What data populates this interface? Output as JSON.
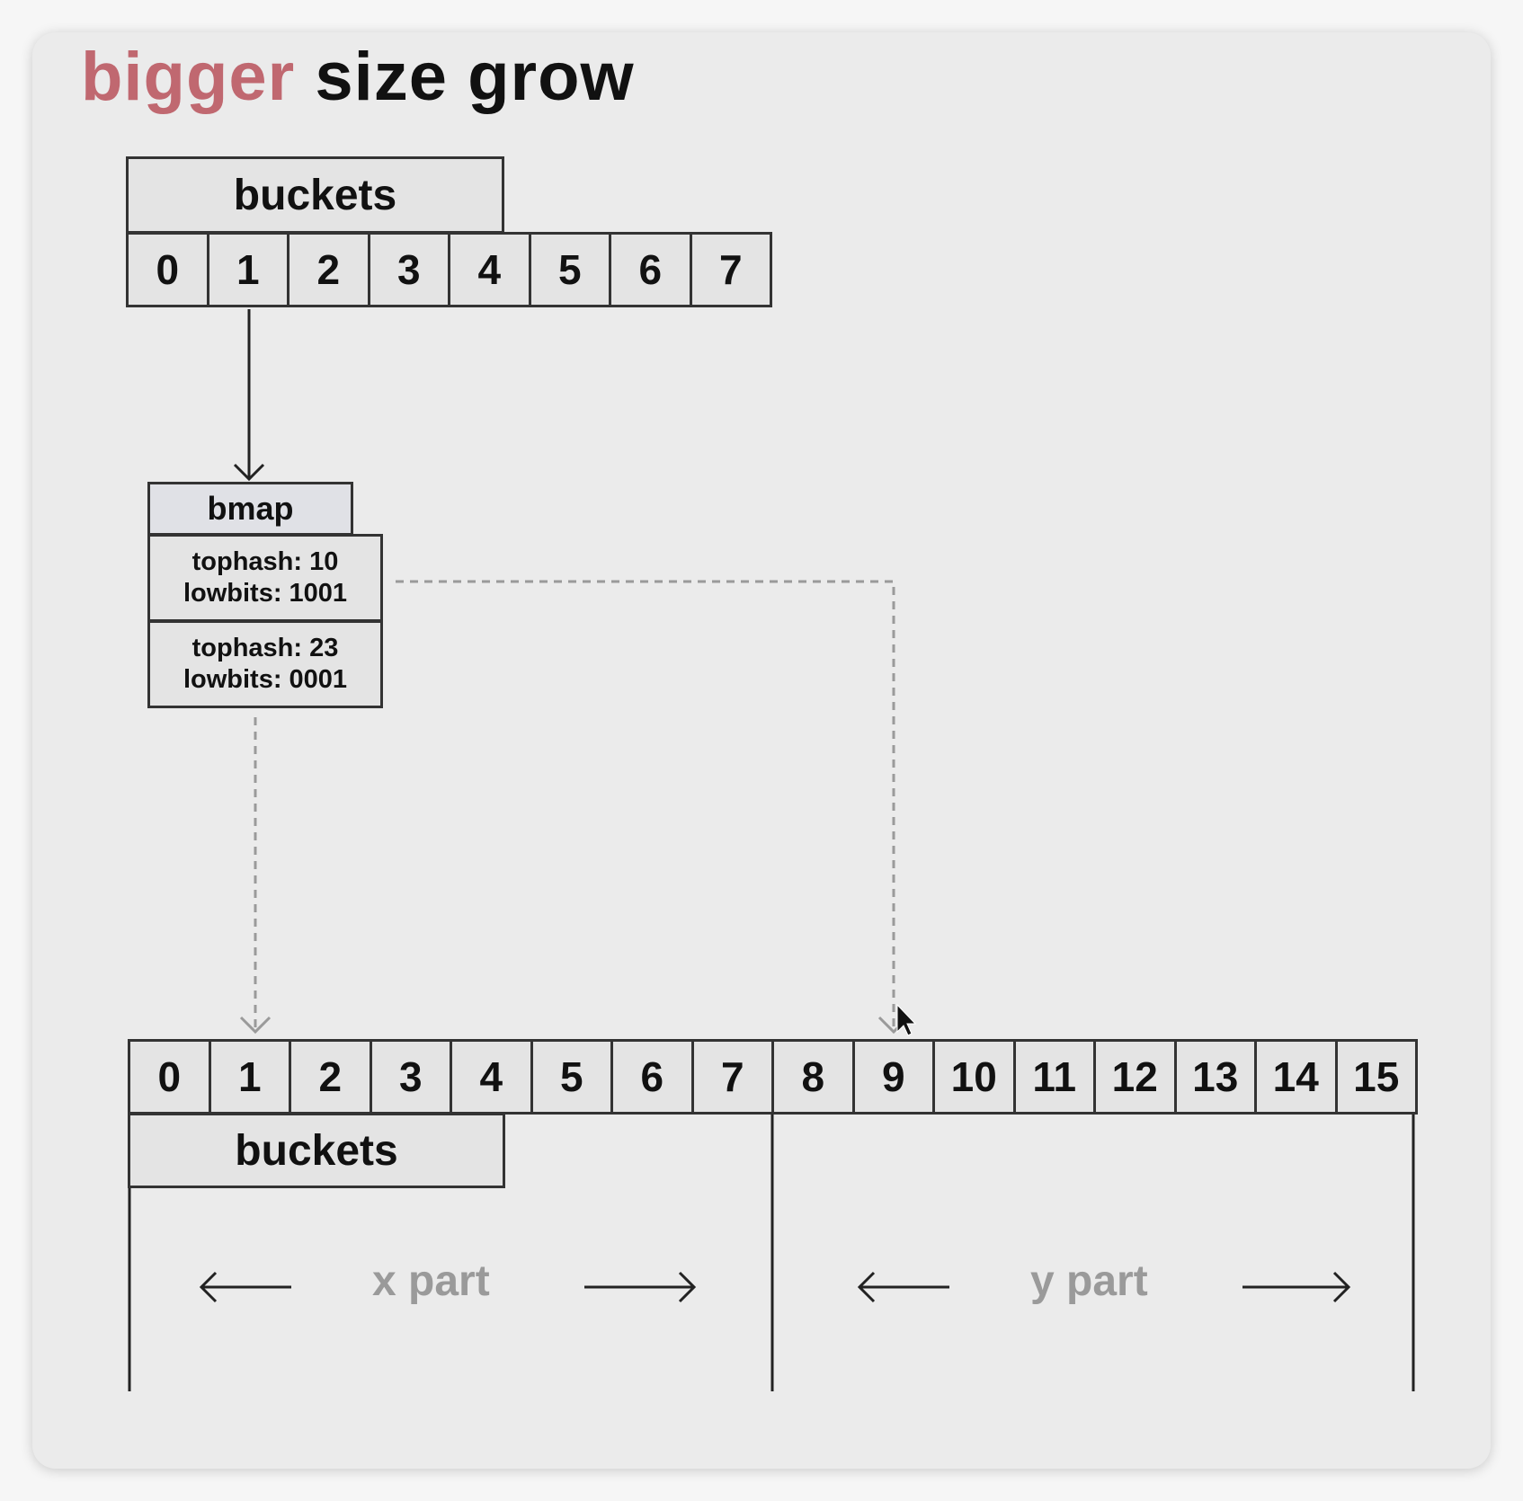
{
  "title": {
    "accent": "bigger",
    "rest": "size grow"
  },
  "old_buckets": {
    "label": "buckets",
    "cells": [
      "0",
      "1",
      "2",
      "3",
      "4",
      "5",
      "6",
      "7"
    ]
  },
  "bmap": {
    "label": "bmap",
    "entries": [
      {
        "tophash": "tophash: 10",
        "lowbits": "lowbits: 1001"
      },
      {
        "tophash": "tophash: 23",
        "lowbits": "lowbits: 0001"
      }
    ]
  },
  "new_buckets": {
    "label": "buckets",
    "cells": [
      "0",
      "1",
      "2",
      "3",
      "4",
      "5",
      "6",
      "7",
      "8",
      "9",
      "10",
      "11",
      "12",
      "13",
      "14",
      "15"
    ]
  },
  "parts": {
    "x": "x part",
    "y": "y part"
  },
  "colors": {
    "accent": "#c06870",
    "dashed": "#9a9a9a",
    "line": "#333333",
    "cell_fill": "#e4e4e4"
  }
}
